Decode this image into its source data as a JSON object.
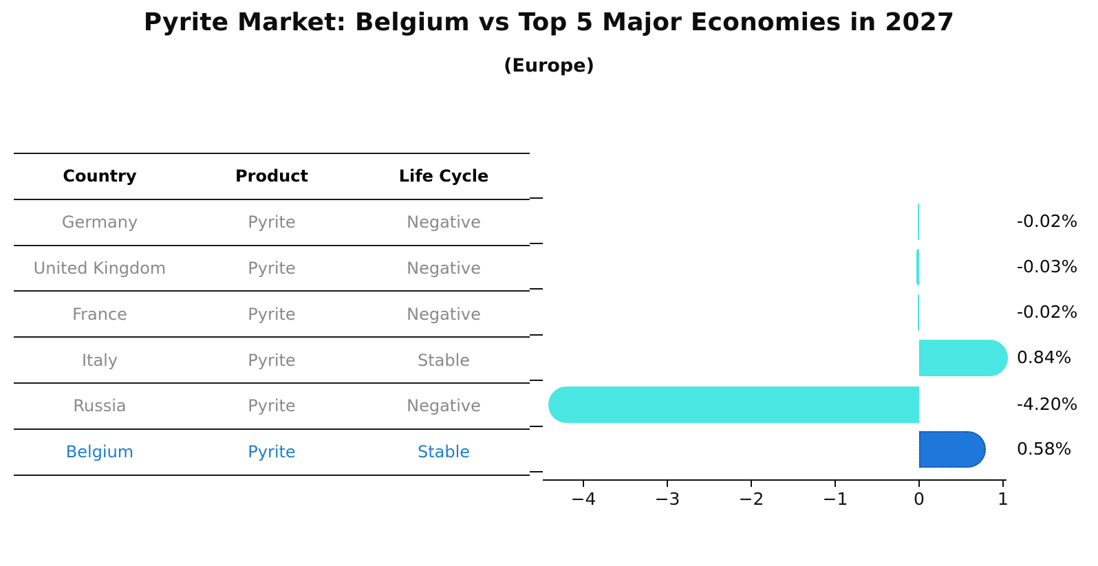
{
  "title": "Pyrite Market: Belgium vs Top 5 Major Economies in 2027",
  "subtitle": "(Europe)",
  "table": {
    "columns": [
      "Country",
      "Product",
      "Life Cycle"
    ],
    "rows": [
      {
        "country": "Germany",
        "product": "Pyrite",
        "life_cycle": "Negative",
        "highlight": false
      },
      {
        "country": "United Kingdom",
        "product": "Pyrite",
        "life_cycle": "Negative",
        "highlight": false
      },
      {
        "country": "France",
        "product": "Pyrite",
        "life_cycle": "Negative",
        "highlight": false
      },
      {
        "country": "Italy",
        "product": "Pyrite",
        "life_cycle": "Stable",
        "highlight": false
      },
      {
        "country": "Russia",
        "product": "Pyrite",
        "life_cycle": "Negative",
        "highlight": false
      },
      {
        "country": "Belgium",
        "product": "Pyrite",
        "life_cycle": "Stable",
        "highlight": true
      }
    ]
  },
  "chart_data": {
    "type": "bar",
    "orientation": "horizontal",
    "categories": [
      "Germany",
      "United Kingdom",
      "France",
      "Italy",
      "Russia",
      "Belgium"
    ],
    "values": [
      -0.02,
      -0.03,
      -0.02,
      0.84,
      -4.2,
      0.58
    ],
    "value_labels": [
      "-0.02%",
      "-0.03%",
      "-0.02%",
      "0.84%",
      "-4.20%",
      "0.58%"
    ],
    "highlight_index": 5,
    "x_tick_values": [
      -4,
      -3,
      -2,
      -1,
      0,
      1
    ],
    "x_tick_labels": [
      "−4",
      "−3",
      "−2",
      "−1",
      "0",
      "1"
    ],
    "xlim": [
      -4.48,
      1.04
    ],
    "grid": false,
    "legend": "none",
    "title": "Pyrite Market: Belgium vs Top 5 Major Economies in 2027",
    "subtitle": "(Europe)",
    "xlabel": "",
    "ylabel": ""
  },
  "colors": {
    "bar": "#49e6e2",
    "highlight_bar": "#1e78db",
    "highlight_border": "#17489c",
    "table_text": "#8a8a8a",
    "highlight_text": "#1e7fd0",
    "header_text": "#000000",
    "axis": "#111111",
    "background": "#ffffff"
  }
}
